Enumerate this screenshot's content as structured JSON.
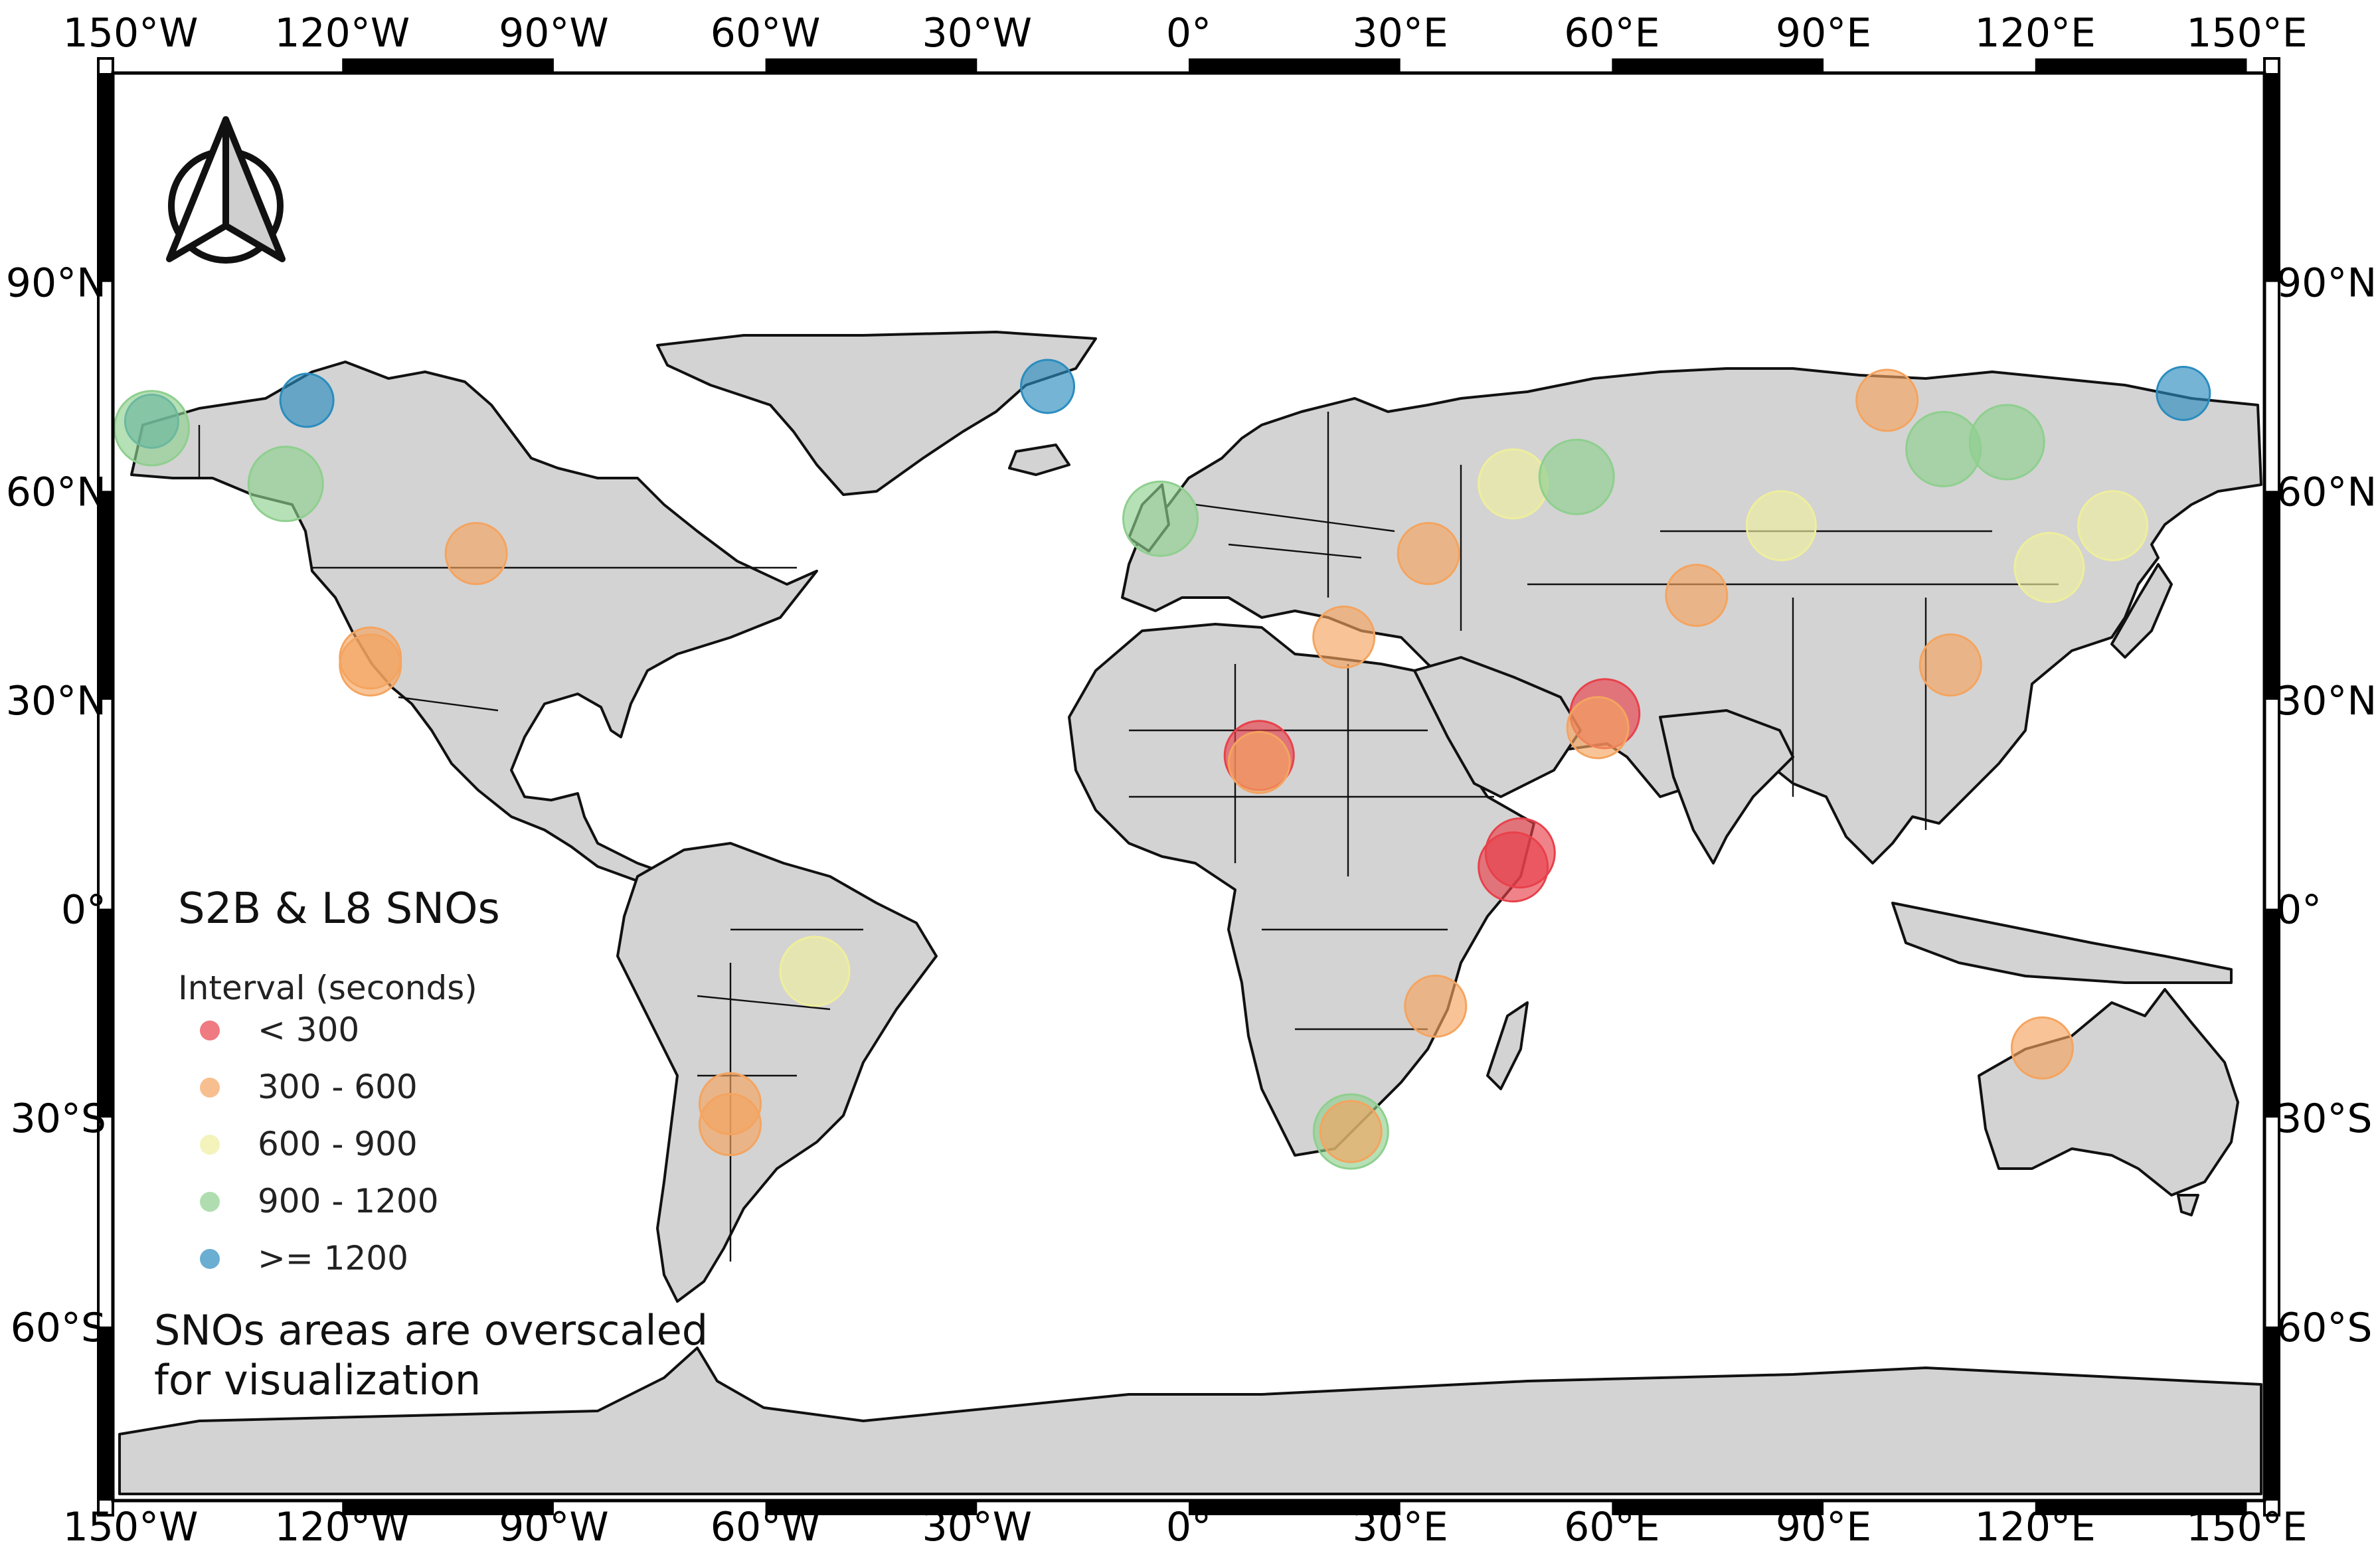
{
  "map": {
    "title": "S2B & L8 SNOs",
    "legend_subtitle": "Interval (seconds)",
    "legend": [
      {
        "label": "< 300",
        "color": "#e8414b"
      },
      {
        "label": "300 - 600",
        "color": "#f4a460"
      },
      {
        "label": "600 - 900",
        "color": "#eeee9e"
      },
      {
        "label": "900 - 1200",
        "color": "#8fcf8f"
      },
      {
        "label": ">= 1200",
        "color": "#2b8cbe"
      }
    ],
    "note_line1": "SNOs areas are overscaled",
    "note_line2": "for visualization",
    "north_arrow_icon": "north-arrow-icon",
    "lon_labels": [
      "150°W",
      "120°W",
      "90°W",
      "60°W",
      "30°W",
      "0°",
      "30°E",
      "60°E",
      "90°E",
      "120°E",
      "150°E"
    ],
    "lat_labels": [
      "90°N",
      "60°N",
      "30°N",
      "0°",
      "30°S",
      "60°S"
    ],
    "land_color": "#d3d3d3",
    "ocean_color": "#ffffff",
    "sno_points": [
      {
        "lon": -147,
        "lat": 70,
        "interval": ">= 1200"
      },
      {
        "lon": -147,
        "lat": 69,
        "interval": "900 - 1200"
      },
      {
        "lon": -125,
        "lat": 73,
        "interval": ">= 1200"
      },
      {
        "lon": -20,
        "lat": 75,
        "interval": ">= 1200"
      },
      {
        "lon": -128,
        "lat": 61,
        "interval": "900 - 1200"
      },
      {
        "lon": -101,
        "lat": 51,
        "interval": "300 - 600"
      },
      {
        "lon": -116,
        "lat": 36,
        "interval": "300 - 600"
      },
      {
        "lon": -116,
        "lat": 35,
        "interval": "300 - 600"
      },
      {
        "lon": -4,
        "lat": 56,
        "interval": "900 - 1200"
      },
      {
        "lon": 10,
        "lat": 22,
        "interval": "< 300"
      },
      {
        "lon": 10,
        "lat": 21,
        "interval": "300 - 600"
      },
      {
        "lon": 22,
        "lat": 39,
        "interval": "300 - 600"
      },
      {
        "lon": 34,
        "lat": 51,
        "interval": "300 - 600"
      },
      {
        "lon": 46,
        "lat": 61,
        "interval": "600 - 900"
      },
      {
        "lon": 55,
        "lat": 62,
        "interval": "900 - 1200"
      },
      {
        "lon": 59,
        "lat": 28,
        "interval": "< 300"
      },
      {
        "lon": 58,
        "lat": 26,
        "interval": "300 - 600"
      },
      {
        "lon": 47,
        "lat": 8,
        "interval": "< 300"
      },
      {
        "lon": 46,
        "lat": 6,
        "interval": "< 300"
      },
      {
        "lon": 35,
        "lat": -14,
        "interval": "300 - 600"
      },
      {
        "lon": 23,
        "lat": -32,
        "interval": "900 - 1200"
      },
      {
        "lon": 23,
        "lat": -32,
        "interval": "300 - 600"
      },
      {
        "lon": -53,
        "lat": -9,
        "interval": "600 - 900"
      },
      {
        "lon": -65,
        "lat": -28,
        "interval": "300 - 600"
      },
      {
        "lon": -65,
        "lat": -31,
        "interval": "300 - 600"
      },
      {
        "lon": 72,
        "lat": 45,
        "interval": "300 - 600"
      },
      {
        "lon": 84,
        "lat": 55,
        "interval": "600 - 900"
      },
      {
        "lon": 99,
        "lat": 73,
        "interval": "300 - 600"
      },
      {
        "lon": 107,
        "lat": 66,
        "interval": "900 - 1200"
      },
      {
        "lon": 116,
        "lat": 67,
        "interval": "900 - 1200"
      },
      {
        "lon": 122,
        "lat": 49,
        "interval": "600 - 900"
      },
      {
        "lon": 131,
        "lat": 55,
        "interval": "600 - 900"
      },
      {
        "lon": 108,
        "lat": 35,
        "interval": "300 - 600"
      },
      {
        "lon": 121,
        "lat": -20,
        "interval": "300 - 600"
      },
      {
        "lon": 141,
        "lat": 74,
        "interval": ">= 1200"
      }
    ]
  }
}
